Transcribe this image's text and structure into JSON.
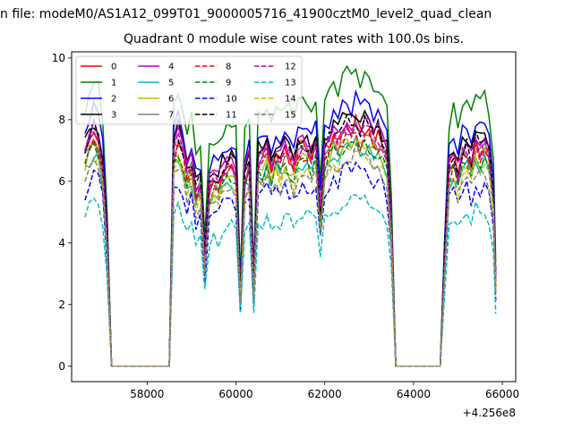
{
  "figure": {
    "suptitle": "n file: modeM0/AS1A12_099T01_9000005716_41900cztM0_level2_quad_clean",
    "title": "Quadrant 0 module wise count rates with 100.0s bins.",
    "offset_text": "+4.256e8"
  },
  "chart_data": {
    "type": "line",
    "title": "Quadrant 0 module wise count rates with 100.0s bins.",
    "xlabel": "",
    "ylabel": "",
    "x_offset": 425600000,
    "xlim": [
      56300,
      66300
    ],
    "ylim": [
      -0.5,
      10.2
    ],
    "xticks": [
      58000,
      60000,
      62000,
      64000,
      66000
    ],
    "xtick_labels": [
      "58000",
      "60000",
      "62000",
      "64000",
      "66000"
    ],
    "yticks": [
      0,
      2,
      4,
      6,
      8,
      10
    ],
    "ytick_labels": [
      "0",
      "2",
      "4",
      "6",
      "8",
      "10"
    ],
    "grid": false,
    "legend_position": "top-left",
    "legend_columns": 4,
    "segments": [
      {
        "x": [
          56600,
          56700,
          56800,
          56900,
          57000,
          57100
        ],
        "base": [
          6.9,
          7.3,
          7.6,
          7.4,
          6.5,
          4.0
        ],
        "start": 0,
        "end": 5
      },
      {
        "x": [
          57100,
          57200,
          57300,
          57400,
          57500,
          57600,
          57700,
          57800,
          57900,
          58000,
          58100,
          58200,
          58300,
          58400,
          58500
        ],
        "zero": true
      },
      {
        "x": [
          58500,
          58600,
          58700,
          58800,
          58900,
          59000,
          59100,
          59200,
          59300,
          59400,
          59500,
          59600,
          59700,
          59800,
          59900,
          60000,
          60100,
          60200,
          60300,
          60400,
          60500,
          60600,
          60700,
          60800,
          60900,
          61000,
          61100,
          61200,
          61300,
          61400,
          61500,
          61600,
          61700,
          61800,
          61900,
          62000,
          62100,
          62200,
          62300,
          62400,
          62500,
          62600,
          62700,
          62800,
          62900,
          63000,
          63100,
          63200,
          63300,
          63400,
          63500
        ],
        "base": [
          2.0,
          7.0,
          7.4,
          7.0,
          6.2,
          6.6,
          5.6,
          6.0,
          3.4,
          5.8,
          6.1,
          5.9,
          6.3,
          6.5,
          6.5,
          6.3,
          2.2,
          6.2,
          6.6,
          2.6,
          6.8,
          6.7,
          7.0,
          6.5,
          6.9,
          6.6,
          7.0,
          6.8,
          6.5,
          7.0,
          7.1,
          7.0,
          6.8,
          7.2,
          5.0,
          7.0,
          7.2,
          7.5,
          7.3,
          7.6,
          7.8,
          7.6,
          7.9,
          7.5,
          7.7,
          7.6,
          7.3,
          7.4,
          7.1,
          6.8,
          4.5
        ]
      },
      {
        "x": [
          63500,
          63600,
          63700,
          63800,
          63900,
          64000,
          64100,
          64200,
          64300,
          64400,
          64500,
          64600
        ],
        "zero": true
      },
      {
        "x": [
          64600,
          64700,
          64800,
          64900,
          65000,
          65100,
          65200,
          65300,
          65400,
          65500,
          65600,
          65700,
          65800,
          65850
        ],
        "base": [
          0.8,
          3.5,
          6.5,
          6.8,
          6.2,
          6.9,
          7.0,
          6.6,
          7.3,
          7.0,
          7.2,
          6.8,
          5.4,
          2.8
        ]
      }
    ],
    "series": [
      {
        "name": "0",
        "color": "#ff0000",
        "dash": "solid",
        "scale": 1.0
      },
      {
        "name": "1",
        "color": "#008000",
        "dash": "solid",
        "scale": 1.22
      },
      {
        "name": "2",
        "color": "#0000ff",
        "dash": "solid",
        "scale": 1.1
      },
      {
        "name": "3",
        "color": "#000000",
        "dash": "solid",
        "scale": 1.05
      },
      {
        "name": "4",
        "color": "#bf00bf",
        "dash": "solid",
        "scale": 1.03
      },
      {
        "name": "5",
        "color": "#00bfbf",
        "dash": "solid",
        "scale": 0.92
      },
      {
        "name": "6",
        "color": "#bfbf00",
        "dash": "solid",
        "scale": 0.95
      },
      {
        "name": "7",
        "color": "#808080",
        "dash": "solid",
        "scale": 0.98
      },
      {
        "name": "8",
        "color": "#ff0000",
        "dash": "dashed",
        "scale": 0.97
      },
      {
        "name": "9",
        "color": "#008000",
        "dash": "dashed",
        "scale": 0.93
      },
      {
        "name": "10",
        "color": "#0000ff",
        "dash": "dashed",
        "scale": 0.82
      },
      {
        "name": "11",
        "color": "#000000",
        "dash": "dashed",
        "scale": 1.02
      },
      {
        "name": "12",
        "color": "#bf00bf",
        "dash": "dashed",
        "scale": 1.0
      },
      {
        "name": "13",
        "color": "#00bfbf",
        "dash": "dashed",
        "scale": 0.7
      },
      {
        "name": "14",
        "color": "#bfbf00",
        "dash": "dashed",
        "scale": 0.9
      },
      {
        "name": "15",
        "color": "#808080",
        "dash": "dashed",
        "scale": 0.88
      }
    ]
  }
}
